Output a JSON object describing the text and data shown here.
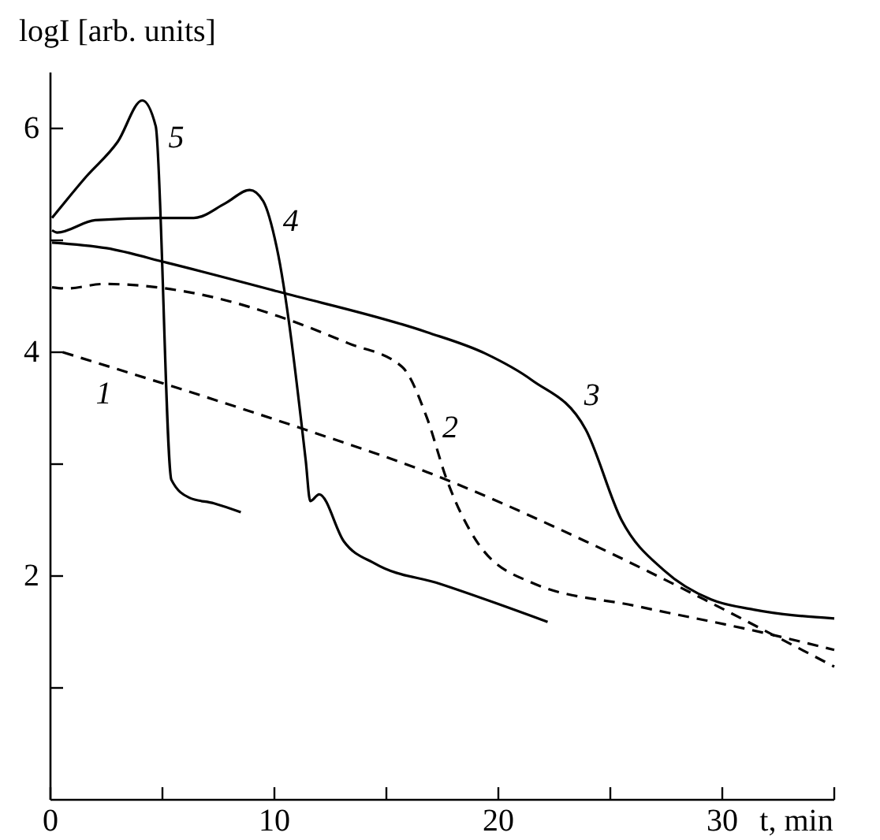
{
  "chart_data": {
    "type": "line",
    "xlabel": "t, min",
    "ylabel": "logI [arb. units]",
    "xlim": [
      0,
      35
    ],
    "ylim": [
      0,
      6.5
    ],
    "xticks": [
      0,
      {
        "value": 5,
        "label": null
      },
      10,
      {
        "value": 15,
        "label": null
      },
      20,
      {
        "value": 25,
        "label": null
      },
      30,
      {
        "value": 35,
        "label": null
      }
    ],
    "yticks": [
      {
        "value": 1,
        "label": null
      },
      2,
      {
        "value": 3,
        "label": null
      },
      4,
      {
        "value": 5,
        "label": null
      },
      6
    ],
    "grid": false,
    "series": [
      {
        "name": "1",
        "color": "#000000",
        "line_style": "dashed",
        "x": [
          0.55,
          11.2,
          16.8,
          23.9,
          29.1,
          32.4,
          35
        ],
        "values": [
          4.0,
          3.32,
          2.93,
          2.31,
          1.8,
          1.46,
          1.19
        ]
      },
      {
        "name": "2",
        "color": "#000000",
        "line_style": "dashed",
        "x": [
          0.07,
          0.7,
          2.4,
          7.3,
          10.2,
          13.3,
          15.7,
          16.8,
          17.7,
          19.1,
          21.5,
          26.2,
          31.9,
          35
        ],
        "values": [
          4.58,
          4.57,
          4.61,
          4.49,
          4.32,
          4.08,
          3.87,
          3.42,
          2.86,
          2.29,
          1.94,
          1.73,
          1.49,
          1.34
        ]
      },
      {
        "name": "3",
        "color": "#000000",
        "line_style": "solid",
        "x": [
          0.07,
          2.5,
          5.2,
          10.2,
          16.8,
          19.4,
          21.5,
          23.9,
          25.5,
          27.4,
          29.5,
          31.4,
          35
        ],
        "values": [
          4.98,
          4.93,
          4.8,
          4.54,
          4.18,
          3.99,
          3.75,
          3.31,
          2.5,
          2.05,
          1.79,
          1.7,
          1.62
        ]
      },
      {
        "name": "4",
        "color": "#000000",
        "line_style": "solid",
        "x": [
          0.07,
          0.3,
          2.0,
          4.9,
          6.4,
          7.8,
          8.9,
          9.5,
          10.1,
          11.4,
          11.6,
          12.0,
          13.1,
          14.5,
          17.4,
          22.2
        ],
        "values": [
          5.09,
          5.07,
          5.18,
          5.2,
          5.2,
          5.33,
          5.45,
          5.35,
          4.94,
          3.03,
          2.67,
          2.73,
          2.31,
          2.11,
          1.93,
          1.59
        ]
      },
      {
        "name": "5",
        "color": "#000000",
        "line_style": "solid",
        "x": [
          0.07,
          1.6,
          3.0,
          4.1,
          4.7,
          5.4,
          6.2,
          7.3,
          8.5
        ],
        "values": [
          5.2,
          5.57,
          5.88,
          6.25,
          6.02,
          2.86,
          2.7,
          2.65,
          2.57
        ]
      }
    ]
  }
}
